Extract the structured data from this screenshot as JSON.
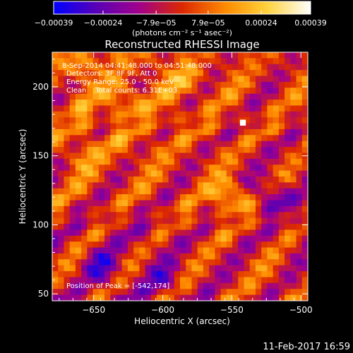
{
  "chart_data": {
    "type": "heatmap",
    "title": "Reconstructed RHESSI Image",
    "xlabel": "Heliocentric X (arcsec)",
    "ylabel": "Heliocentric Y (arcsec)",
    "xlim": [
      -680,
      -495
    ],
    "ylim": [
      45,
      225
    ],
    "xticks": [
      -650,
      -600,
      -550,
      -500
    ],
    "yticks": [
      50,
      100,
      150,
      200
    ],
    "xtick_labels": [
      "−650",
      "−600",
      "−550",
      "−500"
    ],
    "ytick_labels": [
      "50",
      "100",
      "150",
      "200"
    ],
    "colorbar": {
      "min": -0.00039,
      "max": 0.00039,
      "ticks": [
        -0.00039,
        -0.00024,
        -7.9e-05,
        7.9e-05,
        0.00024,
        0.00039
      ],
      "tick_labels": [
        "−0.00039",
        "−0.00024",
        "−7.9e−05",
        "7.9e−05",
        "0.00024",
        "0.00039"
      ],
      "unit_label": "(photons cm⁻² s⁻¹ asec⁻²)"
    },
    "annotations": [
      "8-Sep-2014 04:41:48.000 to 04:51:48.000",
      "Detectors: 3F 8F 9F, Att 0",
      "Energy Range: 25.0 - 50.0 keV",
      "Clean    Total counts: 6.31E+03"
    ],
    "peak_label": "Position of Peak = [-542,174]",
    "peak": [
      -542,
      174
    ],
    "timestamp": "11-Feb-2017 16:59",
    "colormap": [
      "#0000ff",
      "#5a00b4",
      "#a0008c",
      "#dc2800",
      "#ff8c00",
      "#ffd23c",
      "#ffffff"
    ],
    "blobs": [
      {
        "x": -551,
        "y": 120,
        "sigma": 14,
        "amp": 0.4
      },
      {
        "x": -627,
        "y": 190,
        "sigma": 22,
        "amp": 0.25
      },
      {
        "x": -580,
        "y": 205,
        "sigma": 16,
        "amp": 0.2
      },
      {
        "x": -660,
        "y": 215,
        "sigma": 14,
        "amp": 0.2
      },
      {
        "x": -520,
        "y": 120,
        "sigma": 18,
        "amp": -0.35
      },
      {
        "x": -645,
        "y": 70,
        "sigma": 22,
        "amp": -0.25
      },
      {
        "x": -600,
        "y": 60,
        "sigma": 22,
        "amp": -0.2
      },
      {
        "x": -660,
        "y": 150,
        "sigma": 20,
        "amp": 0.15
      }
    ]
  }
}
